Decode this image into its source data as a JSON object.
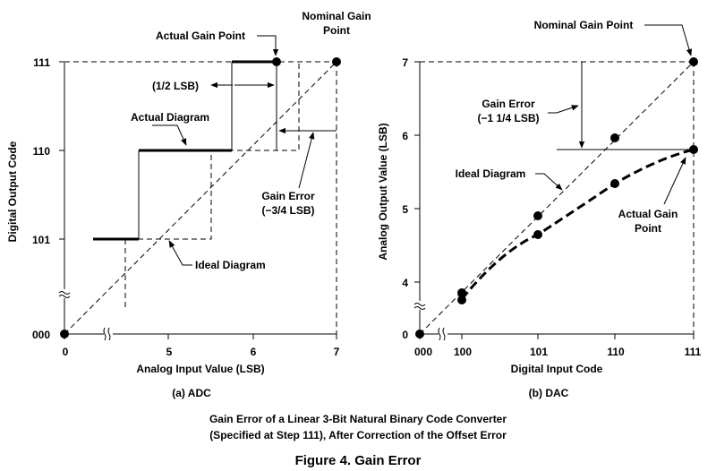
{
  "adc": {
    "ylabel": "Digital Output Code",
    "xlabel": "Analog Input Value (LSB)",
    "subcaption": "(a) ADC",
    "y_ticks": [
      "000",
      "101",
      "110",
      "111"
    ],
    "x_ticks": [
      "0",
      "5",
      "6",
      "7"
    ],
    "annotations": {
      "actual_gain_point": "Actual Gain Point",
      "nominal_gain_point": [
        "Nominal Gain",
        "Point"
      ],
      "half_lsb": "(1/2 LSB)",
      "actual_diagram": "Actual Diagram",
      "gain_error": [
        "Gain Error",
        "(−3/4 LSB)"
      ],
      "ideal_diagram": "Ideal Diagram"
    }
  },
  "dac": {
    "ylabel": "Analog Output Value (LSB)",
    "xlabel": "Digital Input Code",
    "subcaption": "(b) DAC",
    "y_ticks": [
      "0",
      "4",
      "5",
      "6",
      "7"
    ],
    "x_ticks": [
      "000",
      "100",
      "101",
      "110",
      "111"
    ],
    "annotations": {
      "nominal_gain_point": "Nominal Gain Point",
      "gain_error": [
        "Gain Error",
        "(−1 1/4 LSB)"
      ],
      "ideal_diagram": "Ideal Diagram",
      "actual_gain_point": [
        "Actual Gain",
        "Point"
      ]
    }
  },
  "caption": {
    "line1": "Gain Error of a Linear 3-Bit Natural Binary Code Converter",
    "line2": "(Specified at Step 111), After Correction of the Offset Error",
    "figure_title": "Figure 4.  Gain Error"
  }
}
